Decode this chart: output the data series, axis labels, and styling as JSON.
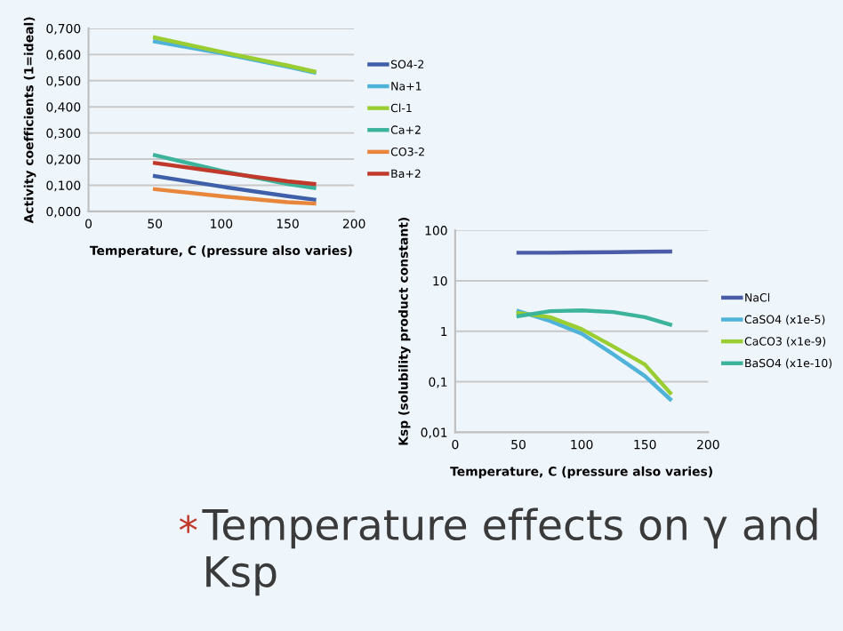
{
  "chart_data": [
    {
      "type": "line",
      "xlabel": "Temperature, C (pressure also varies)",
      "ylabel": "Activity coefficients (1=ideal)",
      "x": [
        50,
        100,
        150,
        170
      ],
      "xlim": [
        0,
        200
      ],
      "xticks": [
        0,
        50,
        100,
        150,
        200
      ],
      "ylim": [
        0,
        0.7
      ],
      "yticks": [
        {
          "value": 0,
          "label": "0,000"
        },
        {
          "value": 0.1,
          "label": "0,100"
        },
        {
          "value": 0.2,
          "label": "0,200"
        },
        {
          "value": 0.3,
          "label": "0,300"
        },
        {
          "value": 0.4,
          "label": "0,400"
        },
        {
          "value": 0.5,
          "label": "0,500"
        },
        {
          "value": 0.6,
          "label": "0,600"
        },
        {
          "value": 0.7,
          "label": "0,700"
        }
      ],
      "grid": "y",
      "legend": "right",
      "marker": "none",
      "series": [
        {
          "name": "SO4-2",
          "color": "#3f5fa8",
          "values": [
            0.135,
            0.095,
            0.058,
            0.045
          ]
        },
        {
          "name": "Na+1",
          "color": "#4fb3d9",
          "values": [
            0.65,
            0.605,
            0.553,
            0.531
          ]
        },
        {
          "name": "Cl-1",
          "color": "#9acd32",
          "values": [
            0.665,
            0.61,
            0.558,
            0.535
          ]
        },
        {
          "name": "Ca+2",
          "color": "#3cb49b",
          "values": [
            0.215,
            0.155,
            0.105,
            0.09
          ]
        },
        {
          "name": "CO3-2",
          "color": "#e8863c",
          "values": [
            0.085,
            0.058,
            0.035,
            0.03
          ]
        },
        {
          "name": "Ba+2",
          "color": "#c0392b",
          "values": [
            0.185,
            0.15,
            0.115,
            0.105
          ]
        }
      ]
    },
    {
      "type": "line",
      "xlabel": "Temperature, C (pressure also varies)",
      "ylabel": "Ksp (solubility product constant)",
      "x": [
        50,
        75,
        100,
        125,
        150,
        170
      ],
      "xlim": [
        0,
        200
      ],
      "xticks": [
        0,
        50,
        100,
        150,
        200
      ],
      "log": "y",
      "ylim": [
        0.01,
        100
      ],
      "yticks": [
        {
          "value": 0.01,
          "label": "0,01"
        },
        {
          "value": 0.1,
          "label": "0,1"
        },
        1,
        10,
        100
      ],
      "grid": "y",
      "legend": "right",
      "marker": "none",
      "annotations": [
        "*",
        "Temperature effects on γ and Ksp"
      ],
      "series": [
        {
          "name": "NaCl",
          "color": "#4a5ba8",
          "values": [
            36,
            36,
            36.5,
            37,
            37.5,
            38
          ]
        },
        {
          "name": "CaSO4 (x1e-5)",
          "color": "#4fb3d9",
          "values": [
            2.5,
            1.6,
            0.9,
            0.35,
            0.13,
            0.045
          ]
        },
        {
          "name": "CaCO3 (x1e-9)",
          "color": "#9acd32",
          "values": [
            2.3,
            1.9,
            1.1,
            0.5,
            0.22,
            0.06
          ]
        },
        {
          "name": "BaSO4 (x1e-10)",
          "color": "#3cb49b",
          "values": [
            2.0,
            2.5,
            2.6,
            2.4,
            1.9,
            1.35
          ]
        }
      ]
    }
  ]
}
